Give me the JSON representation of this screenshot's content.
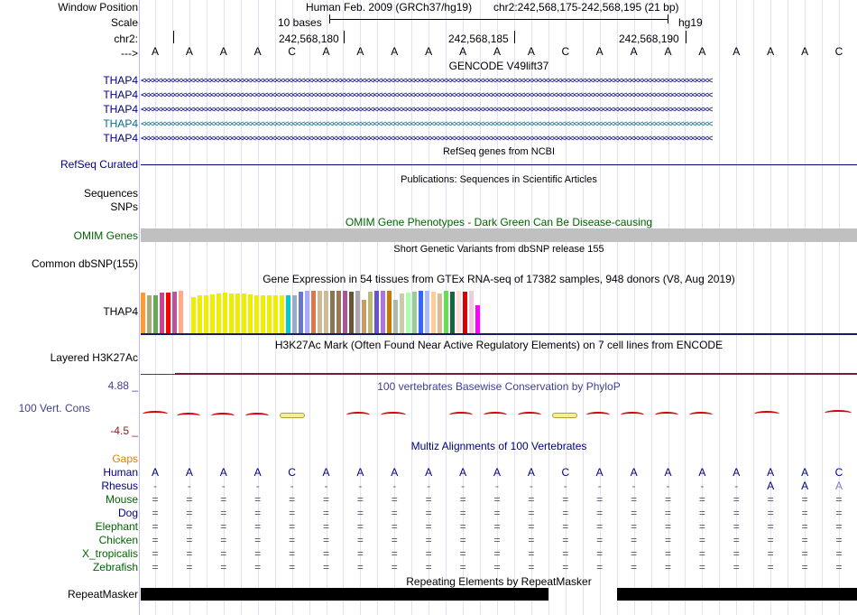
{
  "position_panel": {
    "window_position_label": "Window Position",
    "scale_label": "Scale",
    "chrom_label": "chr2:",
    "strand_arrow": "--->",
    "assembly_title": "Human Feb. 2009 (GRCh37/hg19)",
    "coord_range": "chr2:242,568,175-242,568,195 (21 bp)",
    "scale_text": "10 bases",
    "scale_db": "hg19",
    "ticks": [
      "242,568,180",
      "242,568,185",
      "242,568,190"
    ],
    "bases": [
      "A",
      "A",
      "A",
      "A",
      "C",
      "A",
      "A",
      "A",
      "A",
      "A",
      "A",
      "A",
      "C",
      "A",
      "A",
      "A",
      "A",
      "A",
      "A",
      "A",
      "C"
    ]
  },
  "tracks": {
    "gencode": {
      "title": "GENCODE V49lift37",
      "rows": [
        {
          "name": "THAP4",
          "color": "#000080"
        },
        {
          "name": "THAP4",
          "color": "#000080"
        },
        {
          "name": "THAP4",
          "color": "#000080"
        },
        {
          "name": "THAP4",
          "color": "#0c6c8c"
        },
        {
          "name": "THAP4",
          "color": "#000080"
        }
      ]
    },
    "refseq": {
      "title": "RefSeq genes from NCBI",
      "label": "RefSeq Curated"
    },
    "publications": {
      "title": "Publications: Sequences in Scientific Articles",
      "labels": [
        "Sequences",
        "SNPs"
      ]
    },
    "omim": {
      "title": "OMIM Gene Phenotypes - Dark Green Can Be Disease-causing",
      "label": "OMIM Genes",
      "color": "#006400"
    },
    "dbsnp": {
      "title": "Short Genetic Variants from dbSNP release 155",
      "label": "Common dbSNP(155)"
    },
    "gtex": {
      "title": "Gene Expression in 54 tissues from GTEx RNA-seq of 17382 samples, 948 donors (V8, Aug 2019)",
      "label": "THAP4",
      "bar_colors": [
        "#ff9933",
        "#aaaa77",
        "#66aa55",
        "#cc4488",
        "#ff0000",
        "#bb5599",
        "#ffaa88",
        "#ffffee",
        "#eeee00",
        "#eeee00",
        "#eeee00",
        "#eeee00",
        "#eeee00",
        "#eeee00",
        "#eeee00",
        "#eeee00",
        "#eeee00",
        "#eeee00",
        "#eeee00",
        "#eeee00",
        "#eeee00",
        "#eeee00",
        "#eeee00",
        "#00cccc",
        "#99aacc",
        "#6677cc",
        "#aaaaff",
        "#dd7744",
        "#ccbb99",
        "#ccbb99",
        "#887755",
        "#997755",
        "#aa5599",
        "#665533",
        "#aaaaaa",
        "#cc9966",
        "#bbbb77",
        "#6655cc",
        "#aa77dd",
        "#cc7700",
        "#aabbaa",
        "#ccccaa",
        "#aaffaa",
        "#99cc99",
        "#3366ff",
        "#aabbff",
        "#ffcc99",
        "#ddbb99",
        "#66dd55",
        "#116644",
        "#ffdddd",
        "#dd0000",
        "#eeccdd",
        "#ff00ff"
      ],
      "bar_levels": [
        0.88,
        0.82,
        0.82,
        0.88,
        0.88,
        0.9,
        0.92,
        0.0,
        0.78,
        0.82,
        0.82,
        0.84,
        0.86,
        0.88,
        0.86,
        0.86,
        0.86,
        0.84,
        0.82,
        0.82,
        0.82,
        0.82,
        0.82,
        0.82,
        0.82,
        0.9,
        0.92,
        0.92,
        0.92,
        0.92,
        0.92,
        0.92,
        0.92,
        0.9,
        0.92,
        0.74,
        0.9,
        0.92,
        0.92,
        0.92,
        0.74,
        0.86,
        0.88,
        0.9,
        0.92,
        0.92,
        0.9,
        0.86,
        0.92,
        0.9,
        0.92,
        0.9,
        0.92,
        0.62
      ]
    },
    "h3k27ac": {
      "title": "H3K27Ac Mark (Often Found Near Active Regulatory Elements) on 7 cell lines from ENCODE",
      "label": "Layered H3K27Ac"
    },
    "cons": {
      "title": "100 vertebrates Basewise Conservation by PhyloP",
      "label": "100 Vert. Cons",
      "max_label": "4.88 _",
      "min_label": "-4.5 _",
      "label_color": "#404090",
      "max_color": "#404090",
      "min_color": "#8b2020"
    },
    "multiz": {
      "title": "Multiz Alignments of 100 Vertebrates",
      "gaps_label": "Gaps",
      "gaps_color": "#e08000",
      "species": [
        {
          "name": "Human",
          "color": "#000080"
        },
        {
          "name": "Rhesus",
          "color": "#000080"
        },
        {
          "name": "Mouse",
          "color": "#006400"
        },
        {
          "name": "Dog",
          "color": "#000080"
        },
        {
          "name": "Elephant",
          "color": "#006400"
        },
        {
          "name": "Chicken",
          "color": "#006400"
        },
        {
          "name": "X_tropicalis",
          "color": "#006400"
        },
        {
          "name": "Zebrafish",
          "color": "#006400"
        }
      ],
      "human_bases": [
        "A",
        "A",
        "A",
        "A",
        "C",
        "A",
        "A",
        "A",
        "A",
        "A",
        "A",
        "A",
        "C",
        "A",
        "A",
        "A",
        "A",
        "A",
        "A",
        "A",
        "C"
      ],
      "rhesus_bases": [
        "-",
        "-",
        "-",
        "-",
        "-",
        "-",
        "-",
        "-",
        "-",
        "-",
        "-",
        "-",
        "-",
        "-",
        "-",
        "-",
        "-",
        "-",
        "A",
        "A",
        "A"
      ],
      "equal_sign": "="
    },
    "repeatmasker": {
      "title": "Repeating Elements by RepeatMasker",
      "label": "RepeatMasker"
    }
  },
  "colors": {
    "track_blue": "#000080",
    "track_teal": "#0c6c8c",
    "omim_green": "#006400",
    "gray_bar": "#c0c0c0"
  }
}
